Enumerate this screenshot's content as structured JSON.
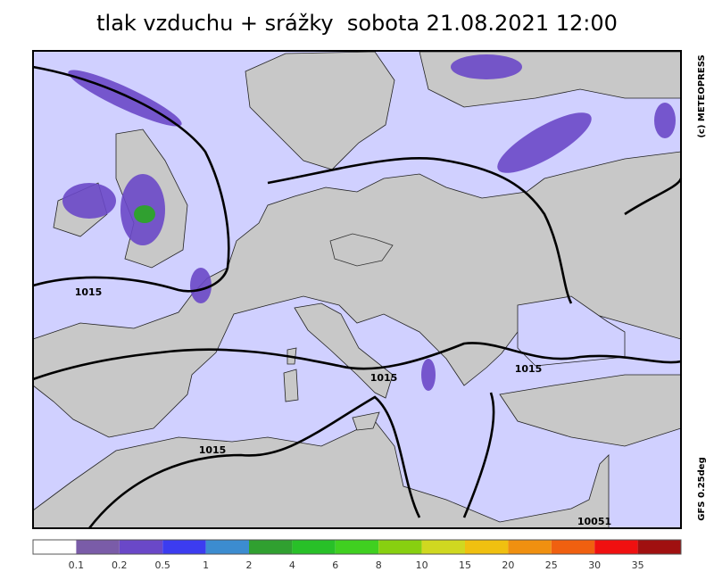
{
  "title": "tlak vzduchu + srážky  sobota 21.08.2021 12:00",
  "copyright": "(c) METEOPRESS",
  "model": "GFS 0.25deg",
  "isobar_labels": [
    "1015",
    "1015",
    "1015",
    "1015",
    "10051"
  ],
  "colorbar": {
    "labels": [
      "0.1",
      "0.2",
      "0.5",
      "1",
      "2",
      "4",
      "6",
      "8",
      "10",
      "15",
      "20",
      "25",
      "30",
      "35"
    ]
  }
}
